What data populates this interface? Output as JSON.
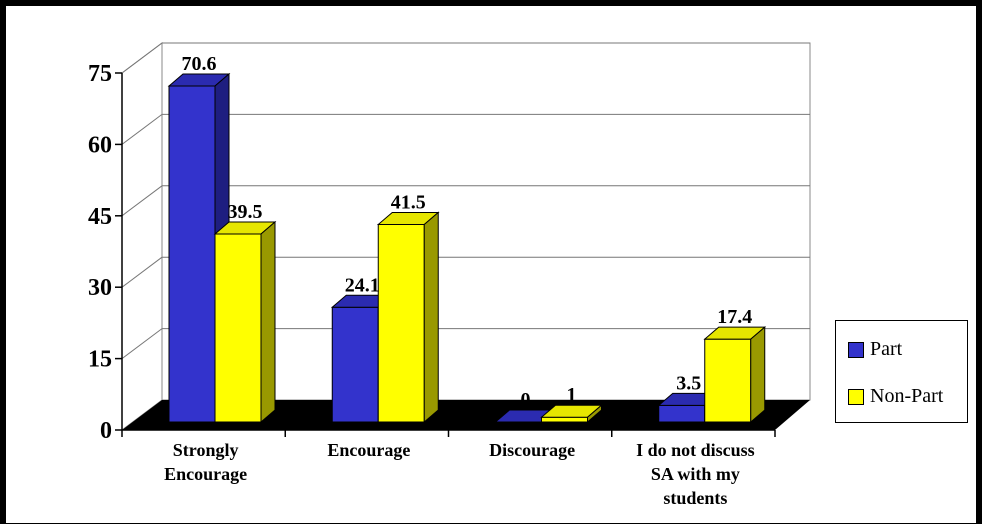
{
  "chart_data": {
    "type": "bar",
    "categories": [
      [
        "Strongly",
        "Encourage"
      ],
      [
        "Encourage"
      ],
      [
        "Discourage"
      ],
      [
        "I do not discuss",
        "SA with my",
        "students"
      ]
    ],
    "series": [
      {
        "name": "Part",
        "values": [
          70.6,
          24.1,
          0,
          3.5
        ],
        "color": "#3333cc",
        "top_color": "#2b2bb0",
        "side_color": "#1e1e80"
      },
      {
        "name": "Non-Part",
        "values": [
          39.5,
          41.5,
          1,
          17.4
        ],
        "color": "#ffff00",
        "top_color": "#e6e600",
        "side_color": "#999900"
      }
    ],
    "data_labels": [
      [
        "70.6",
        "24.1",
        "0",
        "3.5"
      ],
      [
        "39.5",
        "41.5",
        "1",
        "17.4"
      ]
    ],
    "yticks": [
      "0",
      "15",
      "30",
      "45",
      "60",
      "75"
    ],
    "ylim": [
      0,
      75
    ],
    "grid": true,
    "legend_position": "right",
    "floor_color": "#000000",
    "title": "",
    "xlabel": "",
    "ylabel": ""
  }
}
